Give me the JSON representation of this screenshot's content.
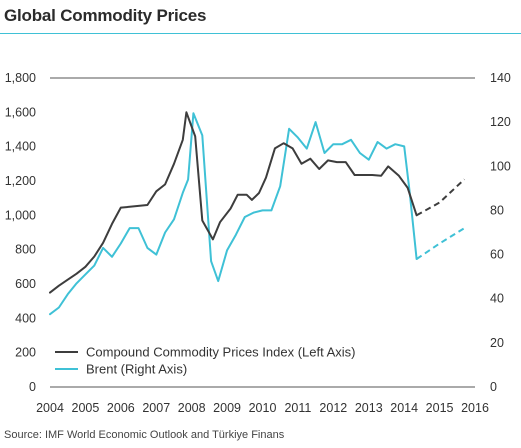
{
  "title": "Global Commodity Prices",
  "source": "Source: IMF World Economic Outlook and Türkiye Finans",
  "chart_data": {
    "type": "line",
    "title": "Global Commodity Prices",
    "x_range": [
      2004,
      2016
    ],
    "x_ticks": [
      "2004",
      "2005",
      "2006",
      "2007",
      "2008",
      "2009",
      "2010",
      "2011",
      "2012",
      "2013",
      "2014",
      "2015",
      "2016"
    ],
    "left_axis": {
      "range": [
        0,
        1800
      ],
      "ticks": [
        "0",
        "200",
        "400",
        "600",
        "800",
        "1,000",
        "1,200",
        "1,400",
        "1,600",
        "1,800"
      ]
    },
    "right_axis": {
      "range": [
        0,
        140
      ],
      "ticks": [
        "0",
        "20",
        "40",
        "60",
        "80",
        "100",
        "120",
        "140"
      ]
    },
    "grid": false,
    "legend_position": "bottom-left",
    "colors": {
      "index": "#3d3d3d",
      "brent": "#3fc1d6",
      "rule": "#3fc1d6"
    },
    "series": [
      {
        "name": "Compound Commodity Prices Index (Left Axis)",
        "axis": "left",
        "points": [
          [
            2004.0,
            550
          ],
          [
            2004.25,
            590
          ],
          [
            2004.5,
            625
          ],
          [
            2004.75,
            660
          ],
          [
            2005.0,
            700
          ],
          [
            2005.25,
            760
          ],
          [
            2005.5,
            840
          ],
          [
            2005.75,
            950
          ],
          [
            2006.0,
            1045
          ],
          [
            2006.25,
            1050
          ],
          [
            2006.5,
            1055
          ],
          [
            2006.75,
            1060
          ],
          [
            2007.0,
            1140
          ],
          [
            2007.25,
            1180
          ],
          [
            2007.5,
            1300
          ],
          [
            2007.75,
            1440
          ],
          [
            2007.85,
            1600
          ],
          [
            2008.1,
            1460
          ],
          [
            2008.3,
            970
          ],
          [
            2008.6,
            860
          ],
          [
            2008.8,
            960
          ],
          [
            2009.1,
            1040
          ],
          [
            2009.3,
            1120
          ],
          [
            2009.55,
            1120
          ],
          [
            2009.7,
            1090
          ],
          [
            2009.9,
            1130
          ],
          [
            2010.1,
            1220
          ],
          [
            2010.35,
            1390
          ],
          [
            2010.6,
            1420
          ],
          [
            2010.85,
            1390
          ],
          [
            2011.1,
            1300
          ],
          [
            2011.35,
            1330
          ],
          [
            2011.6,
            1270
          ],
          [
            2011.85,
            1320
          ],
          [
            2012.1,
            1310
          ],
          [
            2012.35,
            1310
          ],
          [
            2012.6,
            1235
          ],
          [
            2012.85,
            1235
          ],
          [
            2013.1,
            1235
          ],
          [
            2013.35,
            1230
          ],
          [
            2013.55,
            1285
          ],
          [
            2013.85,
            1230
          ],
          [
            2014.1,
            1160
          ],
          [
            2014.35,
            1000
          ]
        ],
        "forecast": [
          [
            2014.35,
            1000
          ],
          [
            2015.0,
            1075
          ],
          [
            2015.7,
            1210
          ]
        ]
      },
      {
        "name": "Brent (Right Axis)",
        "axis": "right",
        "points": [
          [
            2004.0,
            33
          ],
          [
            2004.25,
            36
          ],
          [
            2004.5,
            42
          ],
          [
            2004.75,
            47
          ],
          [
            2005.0,
            51
          ],
          [
            2005.25,
            55
          ],
          [
            2005.5,
            63
          ],
          [
            2005.75,
            59
          ],
          [
            2006.0,
            65
          ],
          [
            2006.25,
            72
          ],
          [
            2006.5,
            72
          ],
          [
            2006.75,
            63
          ],
          [
            2007.0,
            60
          ],
          [
            2007.25,
            70
          ],
          [
            2007.5,
            76
          ],
          [
            2007.75,
            88
          ],
          [
            2007.9,
            94
          ],
          [
            2008.05,
            124
          ],
          [
            2008.3,
            114
          ],
          [
            2008.55,
            57
          ],
          [
            2008.75,
            48
          ],
          [
            2009.0,
            62
          ],
          [
            2009.25,
            69
          ],
          [
            2009.5,
            77
          ],
          [
            2009.75,
            79
          ],
          [
            2010.0,
            80
          ],
          [
            2010.25,
            80
          ],
          [
            2010.5,
            91
          ],
          [
            2010.75,
            117
          ],
          [
            2011.0,
            113
          ],
          [
            2011.25,
            108
          ],
          [
            2011.5,
            120
          ],
          [
            2011.75,
            106
          ],
          [
            2012.0,
            110
          ],
          [
            2012.25,
            110
          ],
          [
            2012.5,
            112
          ],
          [
            2012.75,
            106
          ],
          [
            2013.0,
            103
          ],
          [
            2013.25,
            111
          ],
          [
            2013.5,
            108
          ],
          [
            2013.75,
            110
          ],
          [
            2014.0,
            109
          ],
          [
            2014.15,
            89
          ],
          [
            2014.35,
            58
          ]
        ],
        "forecast": [
          [
            2014.35,
            58
          ],
          [
            2015.0,
            65
          ],
          [
            2015.7,
            72
          ]
        ]
      }
    ]
  }
}
